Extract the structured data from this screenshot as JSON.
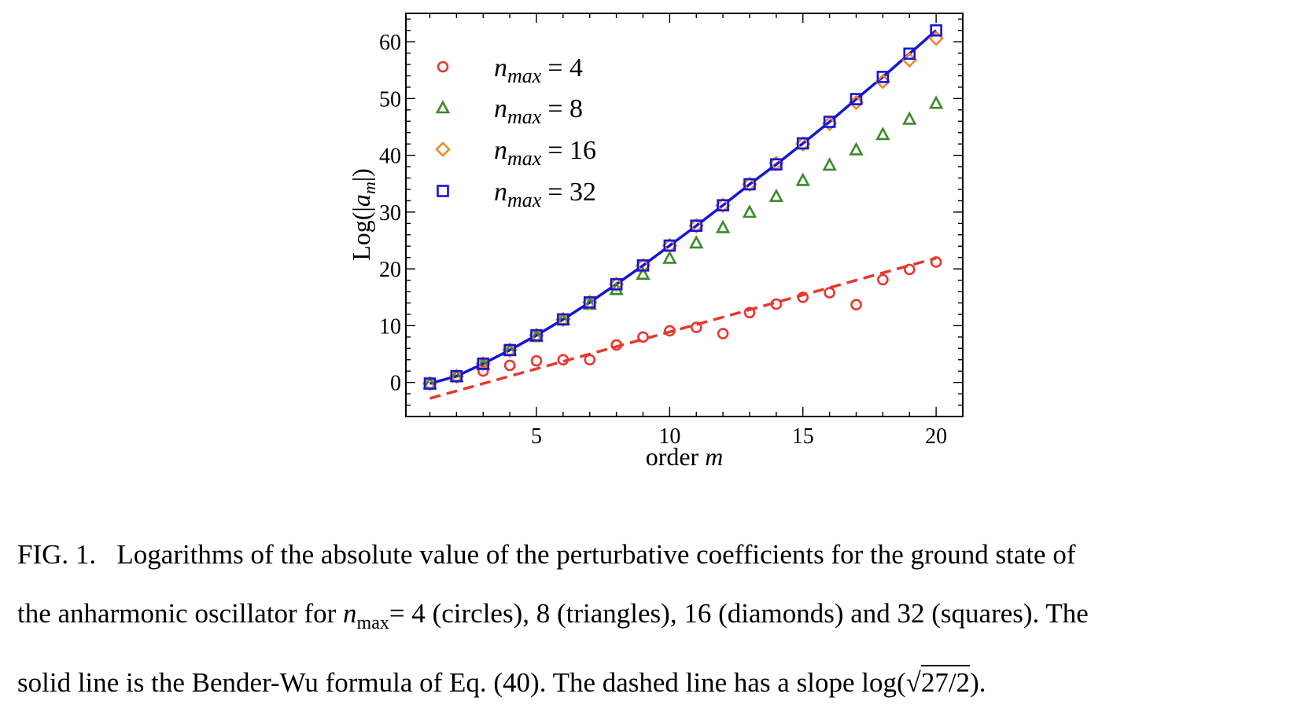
{
  "chart_data": {
    "type": "scatter",
    "xlabel": "order m",
    "ylabel": "Log(|a_m|)",
    "xlim": [
      0.1,
      21.0
    ],
    "ylim": [
      -6,
      65
    ],
    "xticks": [
      5,
      10,
      15,
      20
    ],
    "yticks": [
      0,
      10,
      20,
      30,
      40,
      50,
      60
    ],
    "grid": false,
    "legend_position": "top-left",
    "series": [
      {
        "name": "n_max = 4",
        "legend_label": "= 4",
        "marker": "circle",
        "color": "#e8382c",
        "x": [
          1,
          2,
          3,
          4,
          5,
          6,
          7,
          8,
          9,
          10,
          11,
          12,
          13,
          14,
          15,
          16,
          17,
          18,
          19,
          20
        ],
        "y": [
          -0.2,
          1.0,
          2.0,
          3.0,
          3.8,
          4.0,
          4.0,
          6.6,
          8.0,
          9.1,
          9.7,
          8.6,
          12.3,
          13.8,
          15.0,
          15.8,
          13.7,
          18.1,
          19.9,
          21.2
        ]
      },
      {
        "name": "n_max = 8",
        "legend_label": "= 8",
        "marker": "triangle",
        "color": "#3b8a2a",
        "x": [
          1,
          2,
          3,
          4,
          5,
          6,
          7,
          8,
          9,
          10,
          11,
          12,
          13,
          14,
          15,
          16,
          17,
          18,
          19,
          20
        ],
        "y": [
          -0.2,
          1.1,
          3.2,
          5.7,
          8.1,
          11.1,
          13.8,
          16.4,
          19.1,
          21.9,
          24.6,
          27.3,
          30.0,
          32.8,
          35.6,
          38.3,
          41.0,
          43.7,
          46.4,
          49.2
        ]
      },
      {
        "name": "n_max = 16",
        "legend_label": "= 16",
        "marker": "diamond",
        "color": "#f0882a",
        "x": [
          1,
          2,
          3,
          4,
          5,
          6,
          7,
          8,
          9,
          10,
          11,
          12,
          13,
          14,
          15,
          16,
          17,
          18,
          19,
          20
        ],
        "y": [
          -0.2,
          1.1,
          3.3,
          5.7,
          8.3,
          11.1,
          14.1,
          17.3,
          20.6,
          24.1,
          27.6,
          31.2,
          34.9,
          38.6,
          42.0,
          45.6,
          49.3,
          53.0,
          56.8,
          60.6
        ]
      },
      {
        "name": "n_max = 32",
        "legend_label": "= 32",
        "marker": "square",
        "color": "#1515d8",
        "x": [
          1,
          2,
          3,
          4,
          5,
          6,
          7,
          8,
          9,
          10,
          11,
          12,
          13,
          14,
          15,
          16,
          17,
          18,
          19,
          20
        ],
        "y": [
          -0.2,
          1.1,
          3.3,
          5.7,
          8.3,
          11.1,
          14.1,
          17.3,
          20.6,
          24.1,
          27.6,
          31.2,
          34.9,
          38.4,
          42.1,
          45.9,
          49.9,
          53.8,
          57.9,
          62.0
        ]
      }
    ],
    "lines": [
      {
        "style": "solid",
        "color": "#1515d8",
        "x": [
          1,
          2,
          3,
          4,
          5,
          6,
          7,
          8,
          9,
          10,
          11,
          12,
          13,
          14,
          15,
          16,
          17,
          18,
          19,
          20
        ],
        "y": [
          -0.2,
          1.1,
          3.3,
          5.7,
          8.3,
          11.1,
          14.1,
          17.3,
          20.6,
          24.1,
          27.6,
          31.2,
          34.9,
          38.4,
          42.1,
          45.9,
          49.9,
          53.8,
          57.9,
          62.0
        ]
      },
      {
        "style": "dashed",
        "color": "#e8382c",
        "x": [
          1,
          20
        ],
        "y": [
          -2.8,
          21.9
        ]
      }
    ]
  },
  "caption": {
    "fig_label": "FIG. 1.",
    "line1": "Logarithms of the absolute value of the perturbative coefficients for the ground state of",
    "line2_a": "the anharmonic oscillator for",
    "nmax_sub": "max",
    "line2_b": "= 4 (circles), 8 (triangles), 16 (diamonds) and 32 (squares). The",
    "line3_a": "solid line is the Bender-Wu formula of Eq. (40). The dashed line has a slope log(",
    "sqrt_content": "27/2",
    "line3_b": ")."
  }
}
